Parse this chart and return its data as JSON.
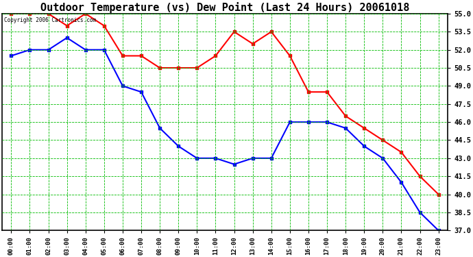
{
  "title": "Outdoor Temperature (vs) Dew Point (Last 24 Hours) 20061018",
  "copyright_text": "Copyright 2006 Cartronics.com",
  "hours": [
    "00:00",
    "01:00",
    "02:00",
    "03:00",
    "04:00",
    "05:00",
    "06:00",
    "07:00",
    "08:00",
    "09:00",
    "10:00",
    "11:00",
    "12:00",
    "13:00",
    "14:00",
    "15:00",
    "16:00",
    "17:00",
    "18:00",
    "19:00",
    "20:00",
    "21:00",
    "22:00",
    "23:00"
  ],
  "temp": [
    55.0,
    55.0,
    55.0,
    54.0,
    55.0,
    54.0,
    51.5,
    51.5,
    50.5,
    50.5,
    50.5,
    51.5,
    53.5,
    52.5,
    53.5,
    51.5,
    48.5,
    48.5,
    46.5,
    45.5,
    44.5,
    43.5,
    41.5,
    40.0
  ],
  "dew": [
    51.5,
    52.0,
    52.0,
    53.0,
    52.0,
    52.0,
    49.0,
    48.5,
    45.5,
    44.0,
    43.0,
    43.0,
    42.5,
    43.0,
    43.0,
    46.0,
    46.0,
    46.0,
    45.5,
    44.0,
    43.0,
    41.0,
    38.5,
    37.0
  ],
  "ylim_min": 37.0,
  "ylim_max": 55.0,
  "yticks": [
    37.0,
    38.5,
    40.0,
    41.5,
    43.0,
    44.5,
    46.0,
    47.5,
    49.0,
    50.5,
    52.0,
    53.5,
    55.0
  ],
  "temp_color": "#ff0000",
  "dew_color": "#0000ff",
  "grid_major_color": "#00bb00",
  "grid_minor_color": "#00bb00",
  "bg_color": "#ffffff",
  "title_fontsize": 11,
  "marker": "s"
}
